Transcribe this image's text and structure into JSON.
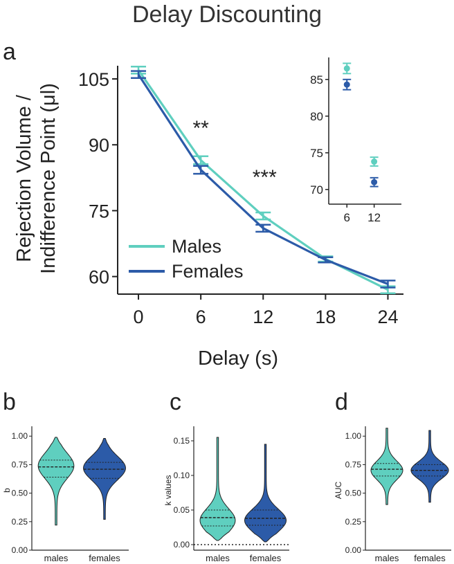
{
  "figure_title": "Delay Discounting",
  "colors": {
    "males": "#5fcfbf",
    "females": "#2c5ba8"
  },
  "chart_data": [
    {
      "panel": "a",
      "type": "line",
      "xlabel": "Delay (s)",
      "ylabel_line1": "Rejection Volume /",
      "ylabel_line2": "Indifference Point (μl)",
      "x": [
        0,
        6,
        12,
        18,
        24
      ],
      "x_ticks": [
        "0",
        "6",
        "12",
        "18",
        "24"
      ],
      "y_ticks": [
        "60",
        "75",
        "90",
        "105"
      ],
      "y_tick_values": [
        60,
        75,
        90,
        105
      ],
      "xlim": [
        -2,
        25.5
      ],
      "ylim": [
        56,
        108
      ],
      "legend": "bottom-left",
      "series": [
        {
          "name": "Males",
          "values": [
            107,
            86.5,
            73.8,
            64,
            57
          ],
          "errors": [
            0.8,
            0.9,
            0.8,
            0.6,
            0.8
          ]
        },
        {
          "name": "Females",
          "values": [
            106,
            84.3,
            71,
            63.8,
            58.3
          ],
          "errors": [
            0.8,
            0.9,
            0.8,
            0.6,
            0.8
          ]
        }
      ],
      "annotations": [
        {
          "text": "**",
          "x": 6
        },
        {
          "text": "***",
          "x": 12
        }
      ]
    },
    {
      "panel": "a-inset",
      "type": "scatter",
      "x": [
        6,
        12
      ],
      "x_ticks": [
        "6",
        "12"
      ],
      "y_ticks": [
        "70",
        "75",
        "80",
        "85"
      ],
      "y_tick_values": [
        70,
        75,
        80,
        85
      ],
      "xlim": [
        2,
        18
      ],
      "ylim": [
        68,
        88
      ],
      "series": [
        {
          "name": "Males",
          "values": [
            86.5,
            73.8
          ],
          "errors": [
            0.7,
            0.6
          ]
        },
        {
          "name": "Females",
          "values": [
            84.3,
            71
          ],
          "errors": [
            0.7,
            0.6
          ]
        }
      ]
    },
    {
      "panel": "b",
      "type": "violin",
      "ylabel": "b",
      "categories": [
        "males",
        "females"
      ],
      "y_ticks": [
        "0.00",
        "0.25",
        "0.50",
        "0.75",
        "1.00"
      ],
      "y_tick_values": [
        0,
        0.25,
        0.5,
        0.75,
        1.0
      ],
      "ylim": [
        0,
        1.05
      ],
      "series": [
        {
          "name": "males",
          "min": 0.22,
          "max": 0.99,
          "q1": 0.64,
          "median": 0.73,
          "q3": 0.79,
          "peak": 0.74,
          "width": 0.8
        },
        {
          "name": "females",
          "min": 0.27,
          "max": 0.98,
          "q1": 0.63,
          "median": 0.71,
          "q3": 0.77,
          "peak": 0.72,
          "width": 0.95
        }
      ]
    },
    {
      "panel": "c",
      "type": "violin",
      "ylabel": "k values",
      "categories": [
        "males",
        "females"
      ],
      "y_ticks": [
        "0.00",
        "0.05",
        "0.10",
        "0.15"
      ],
      "y_tick_values": [
        0,
        0.05,
        0.1,
        0.15
      ],
      "ylim": [
        -0.008,
        0.165
      ],
      "reference_line": 0,
      "series": [
        {
          "name": "males",
          "min": 0.006,
          "max": 0.155,
          "q1": 0.027,
          "median": 0.039,
          "q3": 0.05,
          "peak": 0.035,
          "width": 0.8
        },
        {
          "name": "females",
          "min": 0.004,
          "max": 0.145,
          "q1": 0.028,
          "median": 0.038,
          "q3": 0.05,
          "peak": 0.035,
          "width": 0.95
        }
      ]
    },
    {
      "panel": "d",
      "type": "violin",
      "ylabel": "AUC",
      "categories": [
        "males",
        "females"
      ],
      "y_ticks": [
        "0.00",
        "0.25",
        "0.50",
        "0.75",
        "1.00"
      ],
      "y_tick_values": [
        0,
        0.25,
        0.5,
        0.75,
        1.0
      ],
      "ylim": [
        0,
        1.05
      ],
      "series": [
        {
          "name": "males",
          "min": 0.4,
          "max": 1.07,
          "q1": 0.65,
          "median": 0.71,
          "q3": 0.76,
          "peak": 0.7,
          "width": 0.8
        },
        {
          "name": "females",
          "min": 0.42,
          "max": 1.05,
          "q1": 0.65,
          "median": 0.7,
          "q3": 0.75,
          "peak": 0.7,
          "width": 0.95
        }
      ]
    }
  ]
}
